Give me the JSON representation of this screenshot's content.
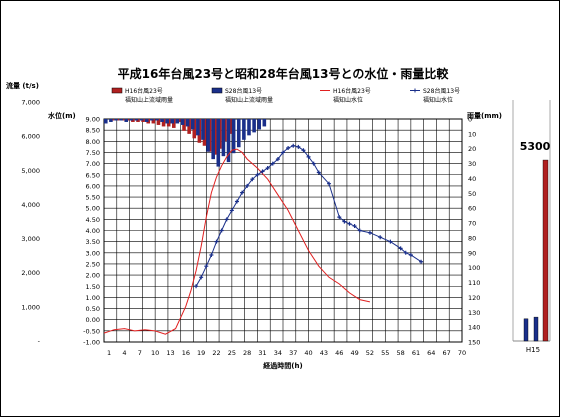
{
  "chart_data": {
    "type": "line",
    "title": "平成16年台風23号と昭和28年台風13号との水位・雨量比較",
    "xlabel": "経過時間(h)",
    "y_discharge_label": "流量 (t/s)",
    "y_level_label": "水位(m)",
    "y_rain_label": "雨量(mm)",
    "x_ticks": [
      1,
      4,
      7,
      10,
      13,
      16,
      19,
      22,
      25,
      28,
      31,
      34,
      37,
      40,
      43,
      46,
      49,
      52,
      55,
      58,
      61,
      64,
      67,
      70
    ],
    "xlim": [
      0,
      70
    ],
    "y_discharge_ticks": [
      "7,000",
      "6,000",
      "5,000",
      "4,000",
      "3,000",
      "2,000",
      "1,000",
      "-"
    ],
    "y_level_ticks": [
      "9.00",
      "8.50",
      "8.00",
      "7.50",
      "7.00",
      "6.50",
      "6.00",
      "5.50",
      "5.00",
      "4.50",
      "4.00",
      "3.50",
      "3.00",
      "2.50",
      "2.00",
      "1.50",
      "1.00",
      "0.50",
      "0.00",
      "-0.50",
      "-1.00"
    ],
    "ylim_level": [
      -1.0,
      9.0
    ],
    "y_rain_ticks": [
      0,
      10,
      20,
      30,
      40,
      50,
      60,
      70,
      80,
      90,
      100,
      110,
      120,
      130,
      140,
      150
    ],
    "ylim_rain": [
      0,
      150
    ],
    "legend": [
      {
        "label": "H16台風23号\n福知山上流域雨量",
        "kind": "bar",
        "color": "#b02020"
      },
      {
        "label": "S28台風13号\n福知山上流域雨量",
        "kind": "bar",
        "color": "#1a2f8a"
      },
      {
        "label": "H16台風23号\n福知山水位",
        "kind": "line",
        "color": "#e02020"
      },
      {
        "label": "S28台風13号\n福知山水位",
        "kind": "marker-line",
        "color": "#1a2f8a"
      }
    ],
    "series": [
      {
        "name": "H16台風23号 福知山上流域雨量",
        "kind": "rain",
        "color": "#b02020",
        "x": [
          2,
          3,
          4,
          5,
          6,
          7,
          8,
          9,
          10,
          11,
          12,
          13,
          14,
          15,
          16,
          17,
          18,
          19,
          20,
          21,
          22,
          23,
          24,
          25
        ],
        "values": [
          1,
          1,
          1,
          1,
          2,
          2,
          2,
          3,
          3,
          4,
          5,
          5,
          6,
          2,
          8,
          10,
          13,
          16,
          18,
          22,
          24,
          20,
          15,
          10
        ]
      },
      {
        "name": "S28台風13号 福知山上流域雨量",
        "kind": "rain",
        "color": "#1a2f8a",
        "x": [
          0,
          1,
          2,
          3,
          4,
          5,
          6,
          7,
          8,
          9,
          10,
          11,
          12,
          13,
          14,
          15,
          16,
          17,
          18,
          19,
          20,
          21,
          22,
          23,
          24,
          25,
          26,
          27,
          28,
          29,
          30,
          31
        ],
        "values": [
          3,
          2,
          1,
          1,
          2,
          1,
          1,
          1,
          2,
          1,
          1,
          2,
          3,
          3,
          3,
          4,
          5,
          7,
          11,
          14,
          22,
          27,
          32,
          25,
          29,
          23,
          19,
          14,
          11,
          9,
          7,
          5
        ]
      },
      {
        "name": "H16台風23号 福知山水位",
        "kind": "level",
        "color": "#e02020",
        "x": [
          0,
          2,
          4,
          6,
          8,
          10,
          12,
          14,
          15,
          16,
          17,
          18,
          19,
          20,
          21,
          22,
          23,
          24,
          25,
          26,
          27,
          28,
          29,
          30,
          32,
          34,
          36,
          38,
          40,
          42,
          44,
          46,
          48,
          50,
          52
        ],
        "values": [
          -0.6,
          -0.45,
          -0.4,
          -0.5,
          -0.45,
          -0.5,
          -0.65,
          -0.4,
          0.1,
          0.6,
          1.3,
          2.2,
          3.3,
          4.6,
          5.7,
          6.4,
          6.9,
          7.3,
          7.6,
          7.65,
          7.5,
          7.2,
          7.0,
          6.8,
          6.3,
          5.6,
          4.9,
          4.0,
          3.1,
          2.4,
          1.9,
          1.6,
          1.2,
          0.9,
          0.8
        ]
      },
      {
        "name": "S28台風13号 福知山水位",
        "kind": "level",
        "color": "#1a2f8a",
        "x": [
          18,
          19,
          20,
          21,
          22,
          23,
          24,
          25,
          26,
          27,
          28,
          29,
          30,
          31,
          32,
          33,
          34,
          35,
          36,
          37,
          38,
          39,
          40,
          41,
          42,
          44,
          46,
          47,
          48,
          49,
          50,
          52,
          54,
          56,
          58,
          59,
          60,
          62
        ],
        "values": [
          1.5,
          1.9,
          2.4,
          2.9,
          3.5,
          4.0,
          4.5,
          4.9,
          5.3,
          5.7,
          6.0,
          6.3,
          6.5,
          6.65,
          6.8,
          7.0,
          7.2,
          7.5,
          7.7,
          7.8,
          7.75,
          7.6,
          7.3,
          7.0,
          6.6,
          6.1,
          4.6,
          4.4,
          4.3,
          4.2,
          4.0,
          3.9,
          3.7,
          3.5,
          3.2,
          3.0,
          2.9,
          2.6
        ]
      }
    ]
  },
  "side_gauge": {
    "value_label": "5300",
    "x_label": "H15",
    "bars": [
      {
        "value": 650,
        "color": "#1a2f8a"
      },
      {
        "value": 700,
        "color": "#1a2f8a"
      },
      {
        "value": 5300,
        "color": "#b02020"
      }
    ],
    "scale_max": 7000
  }
}
